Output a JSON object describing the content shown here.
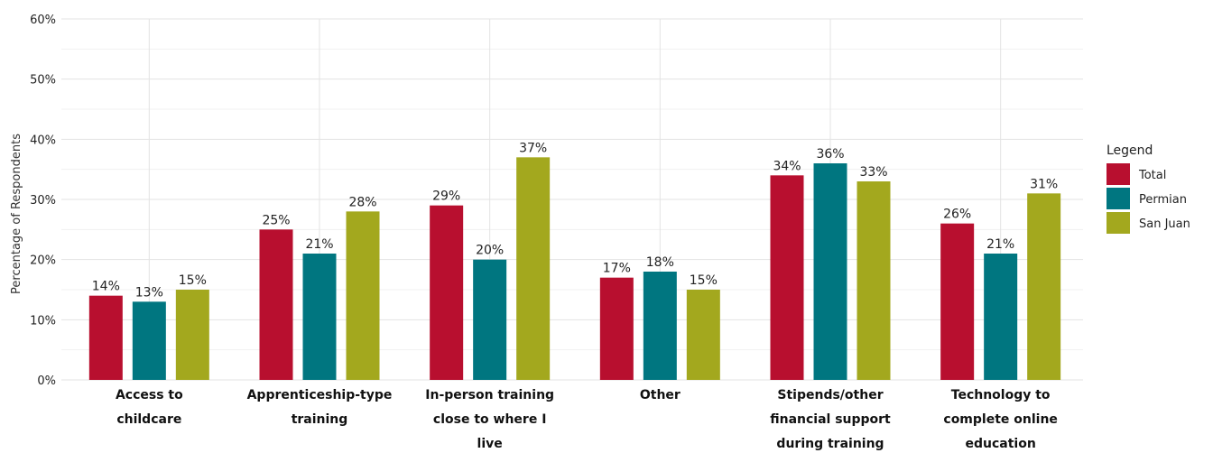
{
  "chart_data": {
    "type": "bar",
    "ylabel": "Percentage of Respondents",
    "xlabel": "",
    "ylim": [
      0,
      60
    ],
    "yticks": [
      "0%",
      "10%",
      "20%",
      "30%",
      "40%",
      "50%",
      "60%"
    ],
    "grid": true,
    "legend_position": "right",
    "legend_title": "Legend",
    "categories": [
      [
        "Access to",
        "childcare"
      ],
      [
        "Apprenticeship-type",
        "training"
      ],
      [
        "In-person training",
        "close to where I",
        "live"
      ],
      [
        "Other"
      ],
      [
        "Stipends/other",
        "financial support",
        "during training"
      ],
      [
        "Technology to",
        "complete online",
        "education"
      ]
    ],
    "series": [
      {
        "name": "Total",
        "color": "#b80f2f",
        "values": [
          14,
          25,
          29,
          17,
          34,
          26
        ]
      },
      {
        "name": "Permian",
        "color": "#007680",
        "values": [
          13,
          21,
          20,
          18,
          36,
          21
        ]
      },
      {
        "name": "San Juan",
        "color": "#a3a81e",
        "values": [
          15,
          28,
          37,
          15,
          33,
          31
        ]
      }
    ],
    "value_suffix": "%"
  }
}
